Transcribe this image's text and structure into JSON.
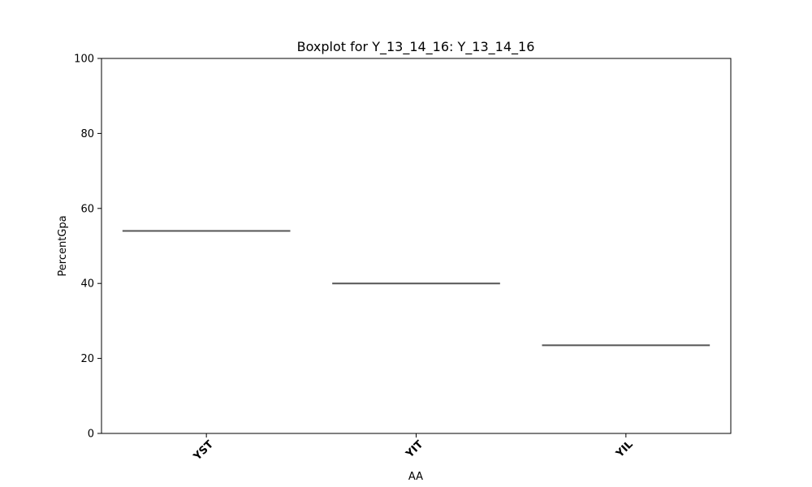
{
  "chart_data": {
    "type": "box",
    "title": "Boxplot for Y_13_14_16: Y_13_14_16",
    "xlabel": "AA",
    "ylabel": "PercentGpa",
    "ylim": [
      0,
      100
    ],
    "yticks": [
      0,
      20,
      40,
      60,
      80,
      100
    ],
    "categories": [
      "YST",
      "YIT",
      "YIL"
    ],
    "values": [
      54,
      40,
      23.5
    ],
    "grid": false,
    "legend": "none",
    "colors": {
      "median_line": "#555555",
      "axes": "#000000",
      "background": "#ffffff"
    }
  }
}
